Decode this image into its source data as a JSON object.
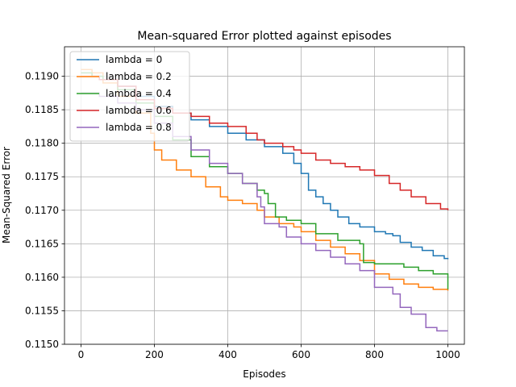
{
  "chart_data": {
    "type": "line",
    "title": "Mean-squared Error plotted against episodes",
    "xlabel": "Episodes",
    "ylabel": "Mean-Squared Error",
    "xlim": [
      -45,
      1045
    ],
    "ylim": [
      0.115,
      0.11944
    ],
    "xticks": [
      0,
      200,
      400,
      600,
      800,
      1000
    ],
    "xtick_labels": [
      "0",
      "200",
      "400",
      "600",
      "800",
      "1000"
    ],
    "yticks": [
      0.115,
      0.1155,
      0.116,
      0.1165,
      0.117,
      0.1175,
      0.118,
      0.1185,
      0.119
    ],
    "ytick_labels": [
      "0.1150",
      "0.1155",
      "0.1160",
      "0.1165",
      "0.1170",
      "0.1175",
      "0.1180",
      "0.1185",
      "0.1190"
    ],
    "grid": true,
    "legend_position": "top-left",
    "series": [
      {
        "name": "lambda = 0",
        "color": "#1f77b4",
        "points": [
          [
            0,
            0.11905
          ],
          [
            30,
            0.119
          ],
          [
            60,
            0.11895
          ],
          [
            100,
            0.11885
          ],
          [
            150,
            0.1187
          ],
          [
            200,
            0.11855
          ],
          [
            250,
            0.11845
          ],
          [
            300,
            0.11835
          ],
          [
            350,
            0.11825
          ],
          [
            400,
            0.11815
          ],
          [
            450,
            0.11805
          ],
          [
            500,
            0.11795
          ],
          [
            550,
            0.11785
          ],
          [
            580,
            0.1177
          ],
          [
            600,
            0.11755
          ],
          [
            620,
            0.1173
          ],
          [
            640,
            0.1172
          ],
          [
            660,
            0.1171
          ],
          [
            680,
            0.117
          ],
          [
            700,
            0.1169
          ],
          [
            730,
            0.1168
          ],
          [
            760,
            0.11675
          ],
          [
            800,
            0.11668
          ],
          [
            830,
            0.11665
          ],
          [
            850,
            0.11662
          ],
          [
            870,
            0.11652
          ],
          [
            900,
            0.11645
          ],
          [
            930,
            0.1164
          ],
          [
            960,
            0.11632
          ],
          [
            990,
            0.11628
          ],
          [
            1000,
            0.11627
          ]
        ]
      },
      {
        "name": "lambda = 0.2",
        "color": "#ff7f0e",
        "points": [
          [
            0,
            0.1191
          ],
          [
            30,
            0.11905
          ],
          [
            60,
            0.1189
          ],
          [
            100,
            0.1187
          ],
          [
            150,
            0.11845
          ],
          [
            190,
            0.11815
          ],
          [
            200,
            0.1179
          ],
          [
            220,
            0.11775
          ],
          [
            260,
            0.1176
          ],
          [
            300,
            0.1175
          ],
          [
            340,
            0.11735
          ],
          [
            380,
            0.1172
          ],
          [
            400,
            0.11715
          ],
          [
            440,
            0.1171
          ],
          [
            480,
            0.117
          ],
          [
            500,
            0.1169
          ],
          [
            540,
            0.1168
          ],
          [
            580,
            0.11675
          ],
          [
            600,
            0.11668
          ],
          [
            640,
            0.11655
          ],
          [
            680,
            0.11645
          ],
          [
            720,
            0.11635
          ],
          [
            760,
            0.11625
          ],
          [
            800,
            0.11605
          ],
          [
            840,
            0.11597
          ],
          [
            880,
            0.1159
          ],
          [
            920,
            0.11585
          ],
          [
            960,
            0.11582
          ],
          [
            1000,
            0.1158
          ]
        ]
      },
      {
        "name": "lambda = 0.4",
        "color": "#2ca02c",
        "points": [
          [
            0,
            0.11905
          ],
          [
            30,
            0.119
          ],
          [
            60,
            0.11895
          ],
          [
            100,
            0.1188
          ],
          [
            150,
            0.1186
          ],
          [
            200,
            0.1184
          ],
          [
            250,
            0.11805
          ],
          [
            300,
            0.1178
          ],
          [
            350,
            0.11765
          ],
          [
            400,
            0.11755
          ],
          [
            440,
            0.1174
          ],
          [
            480,
            0.1173
          ],
          [
            500,
            0.11725
          ],
          [
            510,
            0.1171
          ],
          [
            530,
            0.1169
          ],
          [
            560,
            0.11685
          ],
          [
            600,
            0.1168
          ],
          [
            640,
            0.11665
          ],
          [
            700,
            0.11655
          ],
          [
            760,
            0.1165
          ],
          [
            770,
            0.11622
          ],
          [
            800,
            0.1162
          ],
          [
            840,
            0.1162
          ],
          [
            880,
            0.11615
          ],
          [
            920,
            0.1161
          ],
          [
            960,
            0.11605
          ],
          [
            1000,
            0.11582
          ]
        ]
      },
      {
        "name": "lambda = 0.6",
        "color": "#d62728",
        "points": [
          [
            0,
            0.119
          ],
          [
            50,
            0.11895
          ],
          [
            100,
            0.11885
          ],
          [
            150,
            0.11865
          ],
          [
            200,
            0.11852
          ],
          [
            250,
            0.11845
          ],
          [
            300,
            0.1184
          ],
          [
            350,
            0.1183
          ],
          [
            400,
            0.11825
          ],
          [
            450,
            0.11815
          ],
          [
            480,
            0.11805
          ],
          [
            500,
            0.118
          ],
          [
            550,
            0.11795
          ],
          [
            580,
            0.1179
          ],
          [
            600,
            0.11785
          ],
          [
            640,
            0.11775
          ],
          [
            680,
            0.1177
          ],
          [
            720,
            0.11765
          ],
          [
            760,
            0.1176
          ],
          [
            800,
            0.11752
          ],
          [
            840,
            0.1174
          ],
          [
            870,
            0.1173
          ],
          [
            900,
            0.1172
          ],
          [
            940,
            0.1171
          ],
          [
            980,
            0.11702
          ],
          [
            1000,
            0.117
          ]
        ]
      },
      {
        "name": "lambda = 0.8",
        "color": "#9467bd",
        "points": [
          [
            0,
            0.11875
          ],
          [
            50,
            0.1187
          ],
          [
            100,
            0.1186
          ],
          [
            150,
            0.1185
          ],
          [
            200,
            0.1183
          ],
          [
            250,
            0.1181
          ],
          [
            300,
            0.1179
          ],
          [
            350,
            0.1177
          ],
          [
            400,
            0.11755
          ],
          [
            440,
            0.1174
          ],
          [
            480,
            0.1172
          ],
          [
            490,
            0.11705
          ],
          [
            500,
            0.1168
          ],
          [
            540,
            0.11675
          ],
          [
            560,
            0.1166
          ],
          [
            600,
            0.1165
          ],
          [
            640,
            0.1164
          ],
          [
            680,
            0.1163
          ],
          [
            720,
            0.1162
          ],
          [
            760,
            0.1161
          ],
          [
            800,
            0.11585
          ],
          [
            850,
            0.11575
          ],
          [
            870,
            0.11555
          ],
          [
            900,
            0.11545
          ],
          [
            940,
            0.11525
          ],
          [
            970,
            0.1152
          ],
          [
            1000,
            0.1152
          ]
        ]
      }
    ]
  }
}
